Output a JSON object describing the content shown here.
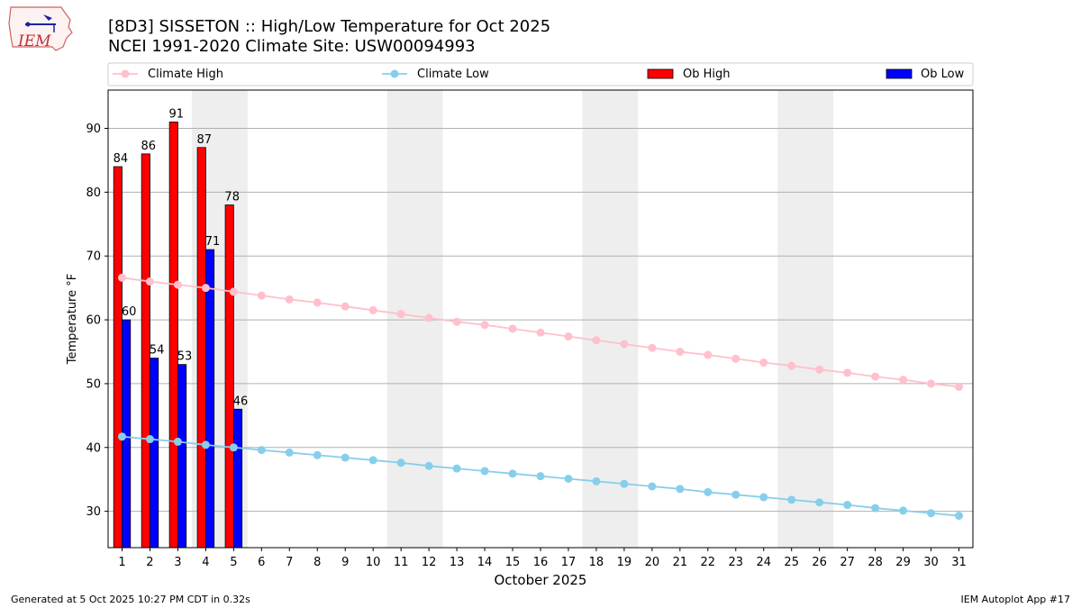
{
  "header": {
    "logo_text": "IEM",
    "title_line1": "[8D3] SISSETON :: High/Low Temperature for Oct 2025",
    "title_line2": "NCEI 1991-2020 Climate Site: USW00094993"
  },
  "footer": {
    "left": "Generated at 5 Oct 2025 10:27 PM CDT in 0.32s",
    "right": "IEM Autoplot App #17"
  },
  "colors": {
    "ob_high": "#ff0000",
    "ob_low": "#0000ff",
    "climate_high": "#ffc0cb",
    "climate_low": "#87ceeb",
    "weekend_shade": "#eeeeee",
    "grid": "#b0b0b0"
  },
  "chart_data": {
    "type": "bar",
    "title": "[8D3] SISSETON :: High/Low Temperature for Oct 2025",
    "subtitle": "NCEI 1991-2020 Climate Site: USW00094993",
    "xlabel": "October 2025",
    "ylabel": "Temperature °F",
    "xlim": [
      0.5,
      31.5
    ],
    "ylim": [
      24.3,
      96
    ],
    "yticks": [
      30,
      40,
      50,
      60,
      70,
      80,
      90
    ],
    "grid": "horizontal",
    "legend_position": "top",
    "legend": [
      "Climate High",
      "Climate Low",
      "Ob High",
      "Ob Low"
    ],
    "x": [
      1,
      2,
      3,
      4,
      5,
      6,
      7,
      8,
      9,
      10,
      11,
      12,
      13,
      14,
      15,
      16,
      17,
      18,
      19,
      20,
      21,
      22,
      23,
      24,
      25,
      26,
      27,
      28,
      29,
      30,
      31
    ],
    "weekend_shading": [
      [
        3.5,
        5.5
      ],
      [
        10.5,
        12.5
      ],
      [
        17.5,
        19.5
      ],
      [
        24.5,
        26.5
      ]
    ],
    "series": [
      {
        "name": "Ob High",
        "kind": "bar",
        "x": [
          1,
          2,
          3,
          4,
          5
        ],
        "values": [
          84,
          86,
          91,
          87,
          78
        ]
      },
      {
        "name": "Ob Low",
        "kind": "bar",
        "x": [
          1,
          2,
          3,
          4,
          5
        ],
        "values": [
          60,
          54,
          53,
          71,
          46
        ]
      },
      {
        "name": "Climate High",
        "kind": "line",
        "values": [
          66.6,
          66.0,
          65.5,
          65.0,
          64.4,
          63.8,
          63.2,
          62.7,
          62.1,
          61.5,
          60.9,
          60.3,
          59.7,
          59.2,
          58.6,
          58.0,
          57.4,
          56.8,
          56.2,
          55.6,
          55.0,
          54.5,
          53.9,
          53.3,
          52.8,
          52.2,
          51.7,
          51.1,
          50.6,
          50.0,
          49.5
        ]
      },
      {
        "name": "Climate Low",
        "kind": "line",
        "values": [
          41.7,
          41.3,
          40.9,
          40.4,
          40.0,
          39.6,
          39.2,
          38.8,
          38.4,
          38.0,
          37.6,
          37.1,
          36.7,
          36.3,
          35.9,
          35.5,
          35.1,
          34.7,
          34.3,
          33.9,
          33.5,
          33.0,
          32.6,
          32.2,
          31.8,
          31.4,
          31.0,
          30.5,
          30.1,
          29.7,
          29.3
        ]
      }
    ]
  }
}
